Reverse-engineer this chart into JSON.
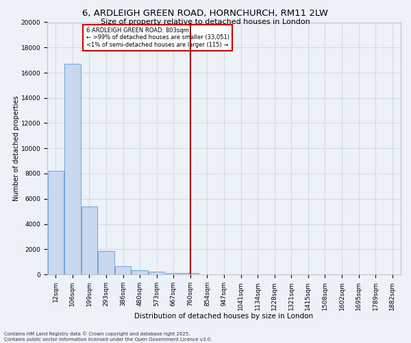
{
  "title": "6, ARDLEIGH GREEN ROAD, HORNCHURCH, RM11 2LW",
  "subtitle": "Size of property relative to detached houses in London",
  "xlabel": "Distribution of detached houses by size in London",
  "ylabel": "Number of detached properties",
  "categories": [
    "12sqm",
    "106sqm",
    "199sqm",
    "293sqm",
    "386sqm",
    "480sqm",
    "573sqm",
    "667sqm",
    "760sqm",
    "854sqm",
    "947sqm",
    "1041sqm",
    "1134sqm",
    "1228sqm",
    "1321sqm",
    "1415sqm",
    "1508sqm",
    "1602sqm",
    "1695sqm",
    "1789sqm",
    "1882sqm"
  ],
  "bar_heights": [
    8200,
    16700,
    5400,
    1850,
    650,
    350,
    200,
    130,
    100,
    0,
    0,
    0,
    0,
    0,
    0,
    0,
    0,
    0,
    0,
    0,
    0
  ],
  "bar_color": "#c8d8ee",
  "bar_edge_color": "#5b9bd5",
  "vline_x": 8,
  "vline_color": "#990000",
  "ylim": [
    0,
    20000
  ],
  "yticks": [
    0,
    2000,
    4000,
    6000,
    8000,
    10000,
    12000,
    14000,
    16000,
    18000,
    20000
  ],
  "annotation_text": "6 ARDLEIGH GREEN ROAD: 803sqm\n← >99% of detached houses are smaller (33,051)\n<1% of semi-detached houses are larger (115) →",
  "annotation_box_facecolor": "#ffffff",
  "annotation_box_edgecolor": "#cc0000",
  "footer_line1": "Contains HM Land Registry data © Crown copyright and database right 2025.",
  "footer_line2": "Contains public sector information licensed under the Open Government Licence v3.0.",
  "background_color": "#edf1f8",
  "grid_color": "#d0d8e8",
  "title_fontsize": 9.5,
  "subtitle_fontsize": 8,
  "ylabel_fontsize": 7,
  "xlabel_fontsize": 7.5,
  "tick_fontsize": 6.5,
  "annot_fontsize": 6,
  "footer_fontsize": 5
}
